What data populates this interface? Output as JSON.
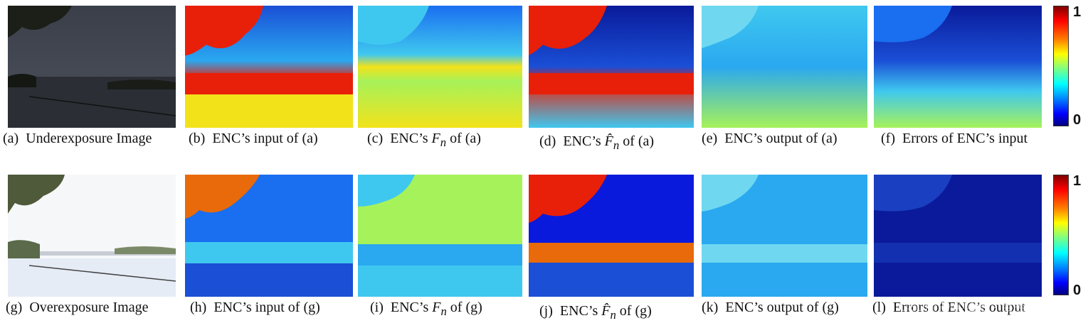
{
  "rows": [
    {
      "captions": [
        {
          "letter": "(a)",
          "text": "Underexposure Image"
        },
        {
          "letter": "(b)",
          "text": "ENC’s input of (a)"
        },
        {
          "letter": "(c)",
          "text_pre": "ENC’s ",
          "math": "F",
          "sub": "n",
          "text_post": " of (a)"
        },
        {
          "letter": "(d)",
          "text_pre": "ENC’s ",
          "math": "F̂",
          "sub": "n",
          "text_post": " of (a)"
        },
        {
          "letter": "(e)",
          "text": "ENC’s output of (a)"
        },
        {
          "letter": "(f)",
          "text": "Errors of ENC’s input"
        }
      ],
      "colorbar": {
        "max": "1",
        "min": "0"
      }
    },
    {
      "captions": [
        {
          "letter": "(g)",
          "text": "Overexposure Image"
        },
        {
          "letter": "(h)",
          "text": "ENC’s input of (g)"
        },
        {
          "letter": "(i)",
          "text_pre": "ENC’s ",
          "math": "F",
          "sub": "n",
          "text_post": " of (g)"
        },
        {
          "letter": "(j)",
          "text_pre": "ENC’s ",
          "math": "F̂",
          "sub": "n",
          "text_post": " of (g)"
        },
        {
          "letter": "(k)",
          "text": "ENC’s output of (g)"
        },
        {
          "letter": "(l)",
          "text": "Errors of ENC’s output"
        }
      ],
      "colorbar": {
        "max": "1",
        "min": "0"
      }
    }
  ],
  "watermark": "CSDN @李旺阳 · 自强不息",
  "colors": {
    "jet_red": "#e8200a",
    "jet_blue": "#1a4fd6",
    "jet_dark_blue": "#0a1a9a",
    "jet_cyan": "#3fc8ef",
    "jet_yellow": "#f2e21a",
    "jet_green": "#a6f25a"
  }
}
